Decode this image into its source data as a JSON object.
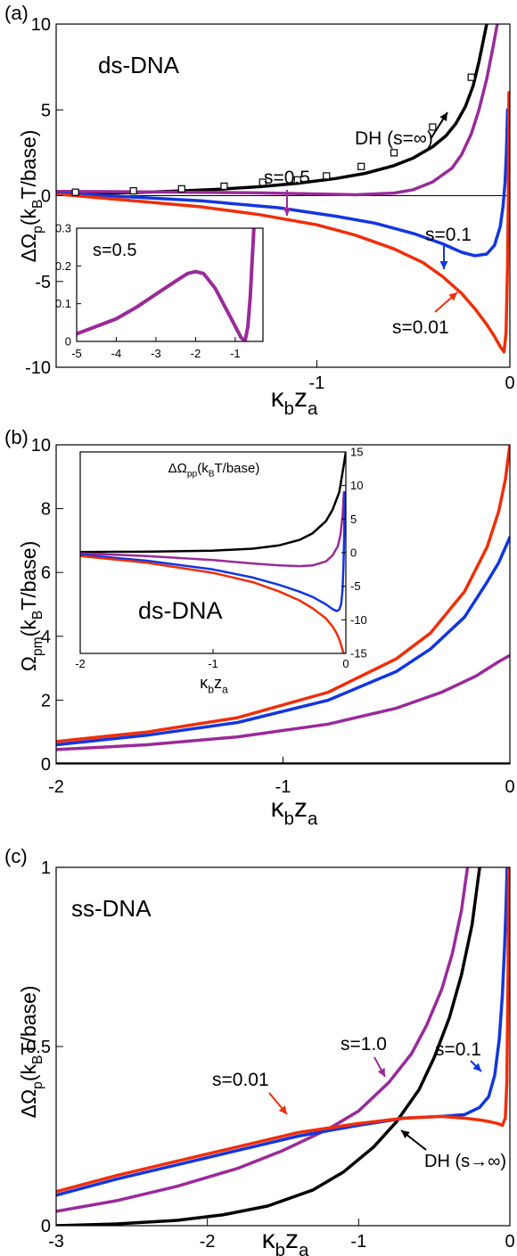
{
  "colors": {
    "black": "#000000",
    "purple": "#9A2A9A",
    "blue": "#1236E0",
    "red": "#F02E0A"
  },
  "chart_data": [
    {
      "type": "line",
      "panel_label": "(a)",
      "title": "ds-DNA",
      "xlabel": "κ_b z_a",
      "ylabel": "ΔΩ_p(k_B T/base)",
      "xlim": [
        -2.35,
        0
      ],
      "ylim": [
        -10,
        10
      ],
      "xticks": [
        -1,
        0
      ],
      "xtick_labels": [
        "-1",
        "0"
      ],
      "yticks": [
        -10,
        -5,
        0,
        5,
        10
      ],
      "ytick_labels": [
        "-10",
        "-5",
        "0",
        "5",
        "10"
      ],
      "grid": false,
      "series": [
        {
          "name": "DH (s=∞)",
          "color": "black",
          "x": [
            -2.35,
            -2.1,
            -1.9,
            -1.7,
            -1.5,
            -1.3,
            -1.1,
            -0.9,
            -0.75,
            -0.6,
            -0.5,
            -0.4,
            -0.33,
            -0.28,
            -0.23,
            -0.19,
            -0.16,
            -0.12
          ],
          "y": [
            0.1,
            0.14,
            0.2,
            0.28,
            0.38,
            0.52,
            0.72,
            1.0,
            1.3,
            1.75,
            2.2,
            2.85,
            3.5,
            4.2,
            5.2,
            6.4,
            7.8,
            10
          ]
        },
        {
          "name": "s=0.5",
          "color": "purple",
          "x": [
            -2.35,
            -2.0,
            -1.6,
            -1.3,
            -1.0,
            -0.8,
            -0.6,
            -0.5,
            -0.4,
            -0.3,
            -0.25,
            -0.2,
            -0.16,
            -0.12,
            -0.09,
            -0.065
          ],
          "y": [
            0.25,
            0.23,
            0.2,
            0.16,
            0.1,
            0.05,
            0.15,
            0.35,
            0.8,
            1.6,
            2.4,
            3.6,
            5.0,
            6.8,
            8.5,
            10
          ]
        },
        {
          "name": "s=0.1",
          "color": "blue",
          "x": [
            -2.35,
            -2.0,
            -1.6,
            -1.2,
            -0.9,
            -0.7,
            -0.5,
            -0.35,
            -0.25,
            -0.18,
            -0.12,
            -0.08,
            -0.05,
            -0.035,
            -0.025,
            -0.018,
            -0.012
          ],
          "y": [
            0.15,
            -0.05,
            -0.3,
            -0.7,
            -1.2,
            -1.6,
            -2.2,
            -2.8,
            -3.3,
            -3.5,
            -3.4,
            -2.9,
            -1.8,
            -0.6,
            0.8,
            2.5,
            5
          ]
        },
        {
          "name": "s=0.01",
          "color": "red",
          "x": [
            -2.35,
            -2.0,
            -1.6,
            -1.3,
            -1.0,
            -0.8,
            -0.6,
            -0.45,
            -0.35,
            -0.25,
            -0.18,
            -0.12,
            -0.08,
            -0.05,
            -0.03,
            -0.02,
            -0.012,
            -0.008,
            -0.005
          ],
          "y": [
            0.1,
            -0.25,
            -0.65,
            -1.1,
            -1.7,
            -2.3,
            -3.1,
            -3.9,
            -4.7,
            -5.7,
            -6.6,
            -7.5,
            -8.2,
            -8.8,
            -9.1,
            -8.0,
            -4,
            0,
            6
          ]
        },
        {
          "name": "DH markers",
          "color": "black",
          "marker": "square",
          "x": [
            -2.25,
            -1.95,
            -1.7,
            -1.48,
            -1.28,
            -1.1,
            -0.95,
            -0.77,
            -0.6,
            -0.4,
            -0.2
          ],
          "y": [
            0.2,
            0.28,
            0.4,
            0.55,
            0.78,
            0.92,
            1.15,
            1.7,
            2.5,
            4.0,
            6.9
          ]
        }
      ],
      "annotations": [
        {
          "text": "DH (s=∞)",
          "color": "black"
        },
        {
          "text": "s=0.5",
          "color": "purple"
        },
        {
          "text": "s=0.1",
          "color": "blue"
        },
        {
          "text": "s=0.01",
          "color": "red"
        }
      ],
      "inset": {
        "title": "s=0.5",
        "xlim": [
          -5,
          -0.3
        ],
        "ylim": [
          0,
          0.3
        ],
        "xticks": [
          -5,
          -4,
          -3,
          -2,
          -1
        ],
        "yticks": [
          0,
          0.1,
          0.2,
          0.3
        ],
        "xtick_labels": [
          "-5",
          "-4",
          "-3",
          "-2",
          "-1"
        ],
        "ytick_labels": [
          "0",
          "0.1",
          "0.2",
          "0.3"
        ],
        "series": [
          {
            "name": "s=0.5",
            "color": "purple",
            "x": [
              -5,
              -4.5,
              -4,
              -3.5,
              -3,
              -2.5,
              -2.2,
              -2.0,
              -1.8,
              -1.5,
              -1.2,
              -1.0,
              -0.85,
              -0.75,
              -0.68,
              -0.62,
              -0.57,
              -0.53
            ],
            "y": [
              0.02,
              0.04,
              0.06,
              0.09,
              0.125,
              0.16,
              0.18,
              0.185,
              0.18,
              0.14,
              0.08,
              0.04,
              0.01,
              0.002,
              0.04,
              0.12,
              0.22,
              0.3
            ]
          }
        ]
      }
    },
    {
      "type": "line",
      "panel_label": "(b)",
      "xlabel": "κ_b z_a",
      "ylabel": "Ω_pm(k_B T/base)",
      "xlim": [
        -2,
        0
      ],
      "ylim": [
        0,
        10
      ],
      "xticks": [
        -2,
        -1,
        0
      ],
      "xtick_labels": [
        "-2",
        "-1",
        "0"
      ],
      "yticks": [
        0,
        2,
        4,
        6,
        8,
        10
      ],
      "ytick_labels": [
        "0",
        "2",
        "4",
        "6",
        "8",
        "10"
      ],
      "grid": false,
      "series": [
        {
          "name": "black",
          "color": "black",
          "x": [
            -2,
            0
          ],
          "y": [
            0,
            0
          ]
        },
        {
          "name": "purple",
          "color": "purple",
          "x": [
            -2,
            -1.6,
            -1.2,
            -0.8,
            -0.5,
            -0.3,
            -0.15,
            -0.05,
            0
          ],
          "y": [
            0.45,
            0.6,
            0.85,
            1.25,
            1.75,
            2.25,
            2.75,
            3.2,
            3.4
          ]
        },
        {
          "name": "blue",
          "color": "blue",
          "x": [
            -2,
            -1.6,
            -1.2,
            -0.8,
            -0.5,
            -0.35,
            -0.2,
            -0.1,
            -0.05,
            0
          ],
          "y": [
            0.6,
            0.9,
            1.3,
            2.0,
            2.9,
            3.6,
            4.6,
            5.7,
            6.3,
            7.1
          ]
        },
        {
          "name": "red",
          "color": "red",
          "x": [
            -2,
            -1.6,
            -1.2,
            -0.8,
            -0.5,
            -0.35,
            -0.2,
            -0.1,
            -0.05,
            -0.02,
            0
          ],
          "y": [
            0.7,
            1.0,
            1.45,
            2.25,
            3.3,
            4.1,
            5.4,
            6.8,
            7.9,
            8.9,
            10
          ]
        }
      ],
      "inset": {
        "title": "ΔΩ_pp(k_B T/base)",
        "label": "ds-DNA",
        "xlabel": "κ_b z_a",
        "xlim": [
          -2,
          0
        ],
        "ylim": [
          -15,
          15
        ],
        "xticks": [
          -2,
          -1,
          0
        ],
        "xtick_labels": [
          "-2",
          "-1",
          "0"
        ],
        "yticks": [
          -15,
          -10,
          -5,
          0,
          5,
          10,
          15
        ],
        "ytick_labels": [
          "-15",
          "-10",
          "-5",
          "0",
          "5",
          "10",
          "15"
        ],
        "series": [
          {
            "name": "black",
            "color": "black",
            "x": [
              -2,
              -1.5,
              -1.0,
              -0.7,
              -0.5,
              -0.35,
              -0.25,
              -0.15,
              -0.1,
              -0.05,
              -0.02,
              0
            ],
            "y": [
              0.1,
              0.15,
              0.3,
              0.6,
              1.1,
              1.9,
              2.9,
              4.7,
              6.4,
              9.0,
              12.5,
              15
            ]
          },
          {
            "name": "purple",
            "color": "purple",
            "x": [
              -2,
              -1.5,
              -1.0,
              -0.7,
              -0.5,
              -0.35,
              -0.25,
              -0.15,
              -0.1,
              -0.06,
              -0.04,
              -0.025,
              -0.015
            ],
            "y": [
              -0.1,
              -0.5,
              -1.1,
              -1.6,
              -1.9,
              -2.0,
              -1.9,
              -1.3,
              -0.4,
              1.0,
              2.7,
              5.5,
              9
            ]
          },
          {
            "name": "blue",
            "color": "blue",
            "x": [
              -2,
              -1.5,
              -1.0,
              -0.7,
              -0.5,
              -0.35,
              -0.25,
              -0.15,
              -0.1,
              -0.07,
              -0.05,
              -0.035,
              -0.025,
              -0.018,
              -0.012,
              -0.008
            ],
            "y": [
              -0.3,
              -1.2,
              -2.5,
              -3.7,
              -4.8,
              -5.8,
              -6.6,
              -7.7,
              -8.4,
              -8.7,
              -8.5,
              -7.6,
              -5.5,
              -2,
              3,
              9
            ]
          },
          {
            "name": "red",
            "color": "red",
            "x": [
              -2,
              -1.5,
              -1.0,
              -0.7,
              -0.5,
              -0.35,
              -0.25,
              -0.15,
              -0.1,
              -0.07,
              -0.05,
              -0.035,
              -0.025,
              -0.018,
              -0.012
            ],
            "y": [
              -0.5,
              -1.5,
              -3.0,
              -4.4,
              -5.8,
              -7.1,
              -8.3,
              -9.8,
              -11.0,
              -12.0,
              -12.9,
              -13.8,
              -14.5,
              -15,
              -15
            ]
          }
        ]
      }
    },
    {
      "type": "line",
      "panel_label": "(c)",
      "title": "ss-DNA",
      "xlabel": "κ_b z_a",
      "ylabel": "ΔΩ_p(k_B T/base)",
      "xlim": [
        -3,
        0
      ],
      "ylim": [
        0,
        1
      ],
      "xticks": [
        -3,
        -2,
        -1,
        0
      ],
      "xtick_labels": [
        "-3",
        "-2",
        "-1",
        "0"
      ],
      "yticks": [
        0,
        0.5,
        1
      ],
      "ytick_labels": [
        "0",
        "0.5",
        "1"
      ],
      "grid": false,
      "series": [
        {
          "name": "DH (s→∞)",
          "color": "black",
          "x": [
            -3,
            -2.6,
            -2.2,
            -1.9,
            -1.6,
            -1.3,
            -1.1,
            -0.9,
            -0.75,
            -0.6,
            -0.5,
            -0.4,
            -0.32,
            -0.25,
            -0.2
          ],
          "y": [
            0.0,
            0.005,
            0.015,
            0.03,
            0.055,
            0.1,
            0.15,
            0.22,
            0.29,
            0.38,
            0.47,
            0.58,
            0.7,
            0.84,
            1.0
          ]
        },
        {
          "name": "s=1.0",
          "color": "purple",
          "x": [
            -3,
            -2.6,
            -2.2,
            -1.8,
            -1.5,
            -1.2,
            -1.0,
            -0.8,
            -0.65,
            -0.55,
            -0.45,
            -0.38,
            -0.32,
            -0.28
          ],
          "y": [
            0.04,
            0.07,
            0.11,
            0.16,
            0.21,
            0.27,
            0.32,
            0.4,
            0.48,
            0.56,
            0.66,
            0.76,
            0.88,
            1.0
          ]
        },
        {
          "name": "s=0.1",
          "color": "blue",
          "x": [
            -3,
            -2.6,
            -2.2,
            -1.8,
            -1.4,
            -1.0,
            -0.7,
            -0.45,
            -0.3,
            -0.2,
            -0.14,
            -0.1,
            -0.07,
            -0.05,
            -0.035,
            -0.025,
            -0.018
          ],
          "y": [
            0.085,
            0.13,
            0.17,
            0.21,
            0.25,
            0.28,
            0.3,
            0.305,
            0.31,
            0.33,
            0.36,
            0.42,
            0.52,
            0.64,
            0.78,
            0.9,
            1.0
          ]
        },
        {
          "name": "s=0.01",
          "color": "red",
          "x": [
            -3,
            -2.6,
            -2.2,
            -1.8,
            -1.4,
            -1.0,
            -0.7,
            -0.45,
            -0.3,
            -0.2,
            -0.13,
            -0.08,
            -0.05,
            -0.03,
            -0.02,
            -0.012,
            -0.008
          ],
          "y": [
            0.095,
            0.14,
            0.18,
            0.22,
            0.26,
            0.285,
            0.3,
            0.305,
            0.3,
            0.295,
            0.29,
            0.285,
            0.28,
            0.3,
            0.4,
            0.7,
            1.0
          ]
        }
      ],
      "annotations": [
        {
          "text": "s=0.01",
          "color": "red"
        },
        {
          "text": "s=1.0",
          "color": "purple"
        },
        {
          "text": "s=0.1",
          "color": "blue"
        },
        {
          "text": "DH (s→∞)",
          "color": "black"
        }
      ]
    }
  ]
}
